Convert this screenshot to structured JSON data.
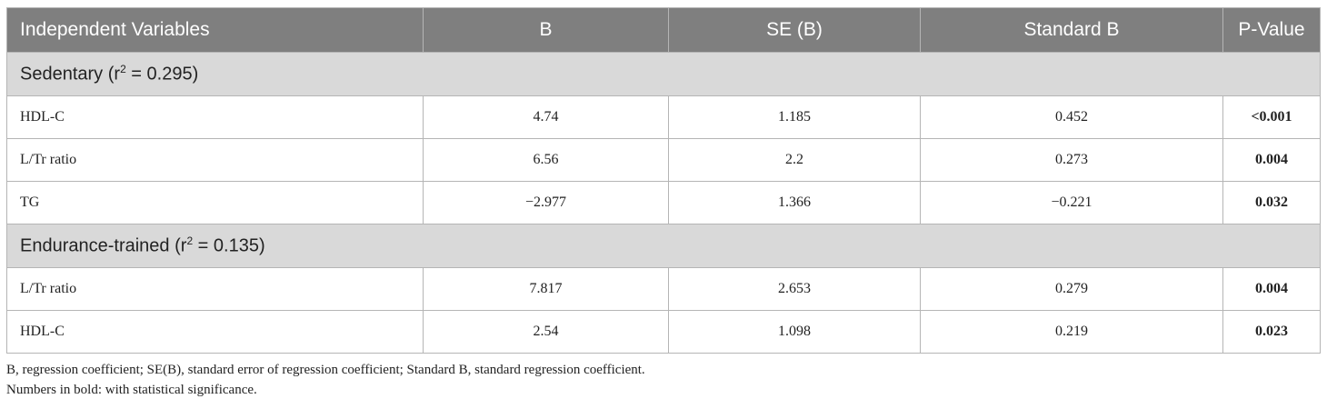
{
  "table": {
    "header": [
      "Independent Variables",
      "B",
      "SE (B)",
      "Standard B",
      "P-Value"
    ],
    "groups": [
      {
        "label": {
          "prefix": "Sedentary (r",
          "sup": "2",
          "suffix": " = 0.295)"
        },
        "rows": [
          [
            "HDL-C",
            "4.74",
            "1.185",
            "0.452",
            "<0.001"
          ],
          [
            "L/Tr ratio",
            "6.56",
            "2.2",
            "0.273",
            "0.004"
          ],
          [
            "TG",
            "−2.977",
            "1.366",
            "−0.221",
            "0.032"
          ]
        ]
      },
      {
        "label": {
          "prefix": "Endurance-trained (r",
          "sup": "2",
          "suffix": " = 0.135)"
        },
        "rows": [
          [
            "L/Tr ratio",
            "7.817",
            "2.653",
            "0.279",
            "0.004"
          ],
          [
            "HDL-C",
            "2.54",
            "1.098",
            "0.219",
            "0.023"
          ]
        ]
      }
    ]
  },
  "footnotes": [
    "B, regression coefficient; SE(B), standard error of regression coefficient; Standard B, standard regression coefficient.",
    "Numbers in bold: with  statistical significance."
  ]
}
